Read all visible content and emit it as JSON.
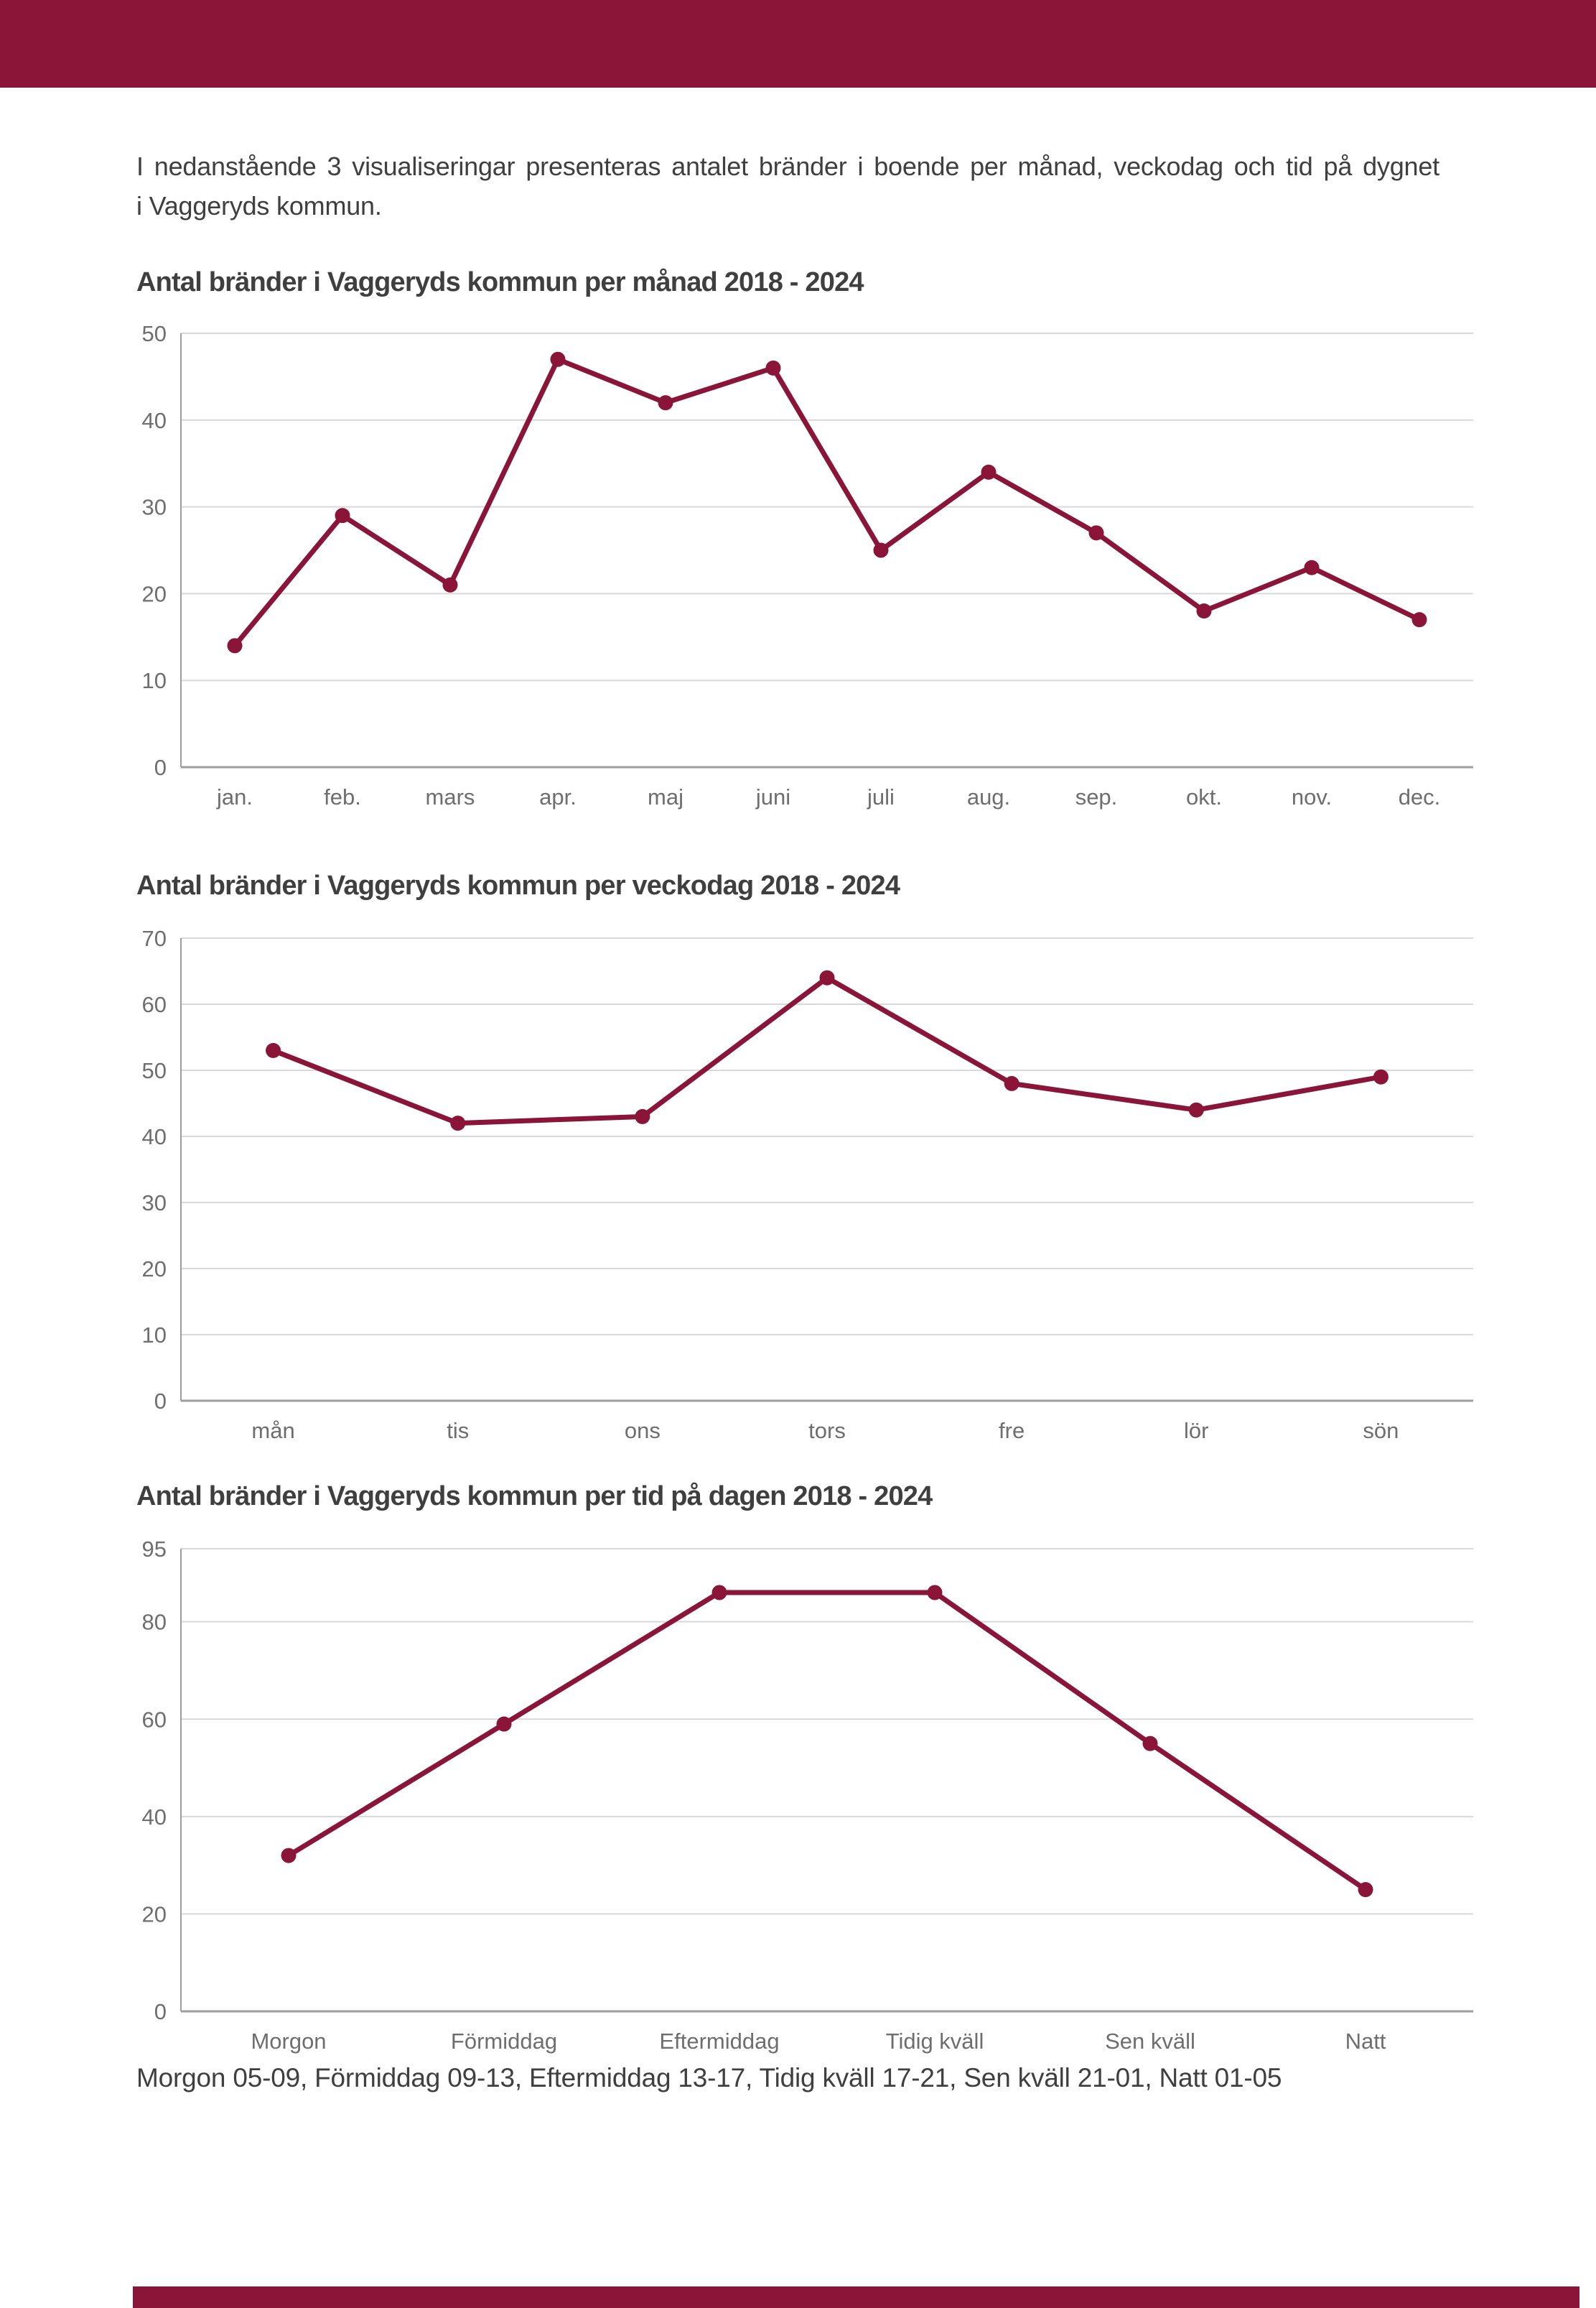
{
  "page": {
    "intro": {
      "line1": "I nedanstående 3 visualiseringar presenteras antalet bränder i boende per månad, veckodag och tid på dygnet",
      "line2": "i Vaggeryds kommun."
    },
    "footnote": "Morgon 05-09, Förmiddag 09-13, Eftermiddag 13-17, Tidig kväll 17-21, Sen kväll 21-01, Natt 01-05"
  },
  "colors": {
    "accent": "#8A1538",
    "line": "#8A1538",
    "grid": "#D9D9D9",
    "axis": "#9E9E9E",
    "tick_text": "#6E6E6E",
    "title_text": "#3F3F3F",
    "body_text": "#3F3F3F"
  },
  "chart_data": [
    {
      "type": "line",
      "title": "Antal bränder i Vaggeryds kommun per månad 2018 - 2024",
      "categories": [
        "jan.",
        "feb.",
        "mars",
        "apr.",
        "maj",
        "juni",
        "juli",
        "aug.",
        "sep.",
        "okt.",
        "nov.",
        "dec."
      ],
      "values": [
        14,
        29,
        21,
        47,
        42,
        46,
        25,
        34,
        27,
        18,
        23,
        17
      ],
      "xlabel": "",
      "ylabel": "",
      "ylim": [
        0,
        50
      ],
      "yticks": [
        0,
        10,
        20,
        30,
        40,
        50
      ],
      "grid": true,
      "legend": "none",
      "line_color": "#8A1538"
    },
    {
      "type": "line",
      "title": "Antal bränder i Vaggeryds kommun per veckodag 2018 - 2024",
      "categories": [
        "mån",
        "tis",
        "ons",
        "tors",
        "fre",
        "lör",
        "sön"
      ],
      "values": [
        53,
        42,
        43,
        64,
        48,
        44,
        49
      ],
      "xlabel": "",
      "ylabel": "",
      "ylim": [
        0,
        70
      ],
      "yticks": [
        0,
        10,
        20,
        30,
        40,
        50,
        60,
        70
      ],
      "grid": true,
      "legend": "none",
      "line_color": "#8A1538"
    },
    {
      "type": "line",
      "title": "Antal bränder i Vaggeryds kommun per tid på dagen 2018 - 2024",
      "categories": [
        "Morgon",
        "Förmiddag",
        "Eftermiddag",
        "Tidig kväll",
        "Sen kväll",
        "Natt"
      ],
      "values": [
        32,
        59,
        86,
        86,
        55,
        25
      ],
      "xlabel": "",
      "ylabel": "",
      "ylim": [
        0,
        95
      ],
      "yticks": [
        0,
        20,
        40,
        60,
        80,
        95
      ],
      "grid": true,
      "legend": "none",
      "line_color": "#8A1538"
    }
  ]
}
